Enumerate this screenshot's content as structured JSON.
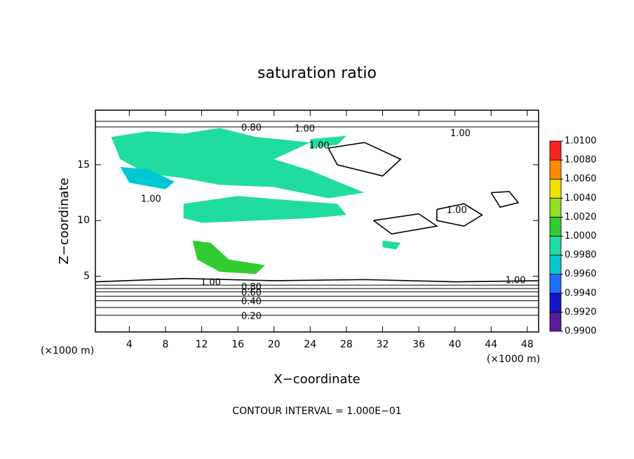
{
  "chart_data": {
    "type": "contour",
    "title": "saturation ratio",
    "x_label": "X−coordinate",
    "y_label": "Z−coordinate",
    "x_unit": "(×1000 m)",
    "y_unit": "(×1000 m)",
    "footnote": "CONTOUR INTERVAL = 1.000E−01",
    "xlim": [
      0.25,
      49.25
    ],
    "ylim": [
      0,
      19.9
    ],
    "xticks": [
      4,
      8,
      12,
      16,
      20,
      24,
      28,
      32,
      36,
      40,
      44,
      48
    ],
    "yticks": [
      5,
      10,
      15
    ],
    "colorbar": {
      "levels": [
        {
          "value": 0.99,
          "label": "0.9900"
        },
        {
          "value": 0.992,
          "label": "0.9920"
        },
        {
          "value": 0.994,
          "label": "0.9940"
        },
        {
          "value": 0.996,
          "label": "0.9960"
        },
        {
          "value": 0.998,
          "label": "0.9980"
        },
        {
          "value": 1.0,
          "label": "1.0000"
        },
        {
          "value": 1.002,
          "label": "1.0020"
        },
        {
          "value": 1.004,
          "label": "1.0040"
        },
        {
          "value": 1.006,
          "label": "1.0060"
        },
        {
          "value": 1.008,
          "label": "1.0080"
        },
        {
          "value": 1.01,
          "label": "1.0100"
        }
      ],
      "colors": [
        "#5a1a9a",
        "#1414c8",
        "#1e6eff",
        "#00c8d2",
        "#20dca0",
        "#30cc30",
        "#90e020",
        "#f0e000",
        "#ff8c00",
        "#ff2020"
      ]
    },
    "filled_regions": [
      {
        "value": 0.9999,
        "x": [
          2,
          6,
          10,
          14,
          18,
          24,
          20,
          24,
          30,
          26,
          20,
          14,
          10,
          6,
          3
        ],
        "y": [
          17.5,
          18,
          17.8,
          18.3,
          17.5,
          17,
          15.5,
          14.5,
          12.5,
          12,
          13,
          13.2,
          13.8,
          14.2,
          15.5
        ]
      },
      {
        "value": 0.9999,
        "x": [
          10,
          16,
          22,
          27,
          28,
          24,
          18,
          12,
          10
        ],
        "y": [
          11.5,
          12.2,
          11.8,
          11.5,
          10.5,
          10.2,
          10,
          9.8,
          10.2
        ]
      },
      {
        "value": 1.0003,
        "x": [
          11,
          13,
          15,
          19,
          18,
          14,
          11.5
        ],
        "y": [
          8.2,
          8,
          6.5,
          6,
          5.2,
          5.4,
          6.5
        ]
      },
      {
        "value": 0.9975,
        "x": [
          3,
          6,
          9,
          8,
          4
        ],
        "y": [
          14.8,
          14.6,
          13.5,
          12.8,
          13.4
        ]
      },
      {
        "value": 0.9995,
        "x": [
          24,
          28,
          27,
          24
        ],
        "y": [
          17.3,
          17.6,
          16.8,
          16.5
        ]
      },
      {
        "value": 0.9985,
        "x": [
          32,
          34,
          33.5,
          32
        ],
        "y": [
          8.2,
          8,
          7.4,
          7.6
        ]
      }
    ],
    "contours": [
      {
        "level": 0.2,
        "x": [
          0.25,
          49.25
        ],
        "y": [
          1.5,
          1.5
        ]
      },
      {
        "level": 0.3,
        "x": [
          0.25,
          49.25
        ],
        "y": [
          2.2,
          2.2
        ]
      },
      {
        "level": 0.4,
        "x": [
          0.25,
          49.25
        ],
        "y": [
          2.8,
          2.8
        ]
      },
      {
        "level": 0.5,
        "x": [
          0.25,
          49.25
        ],
        "y": [
          3.2,
          3.2
        ]
      },
      {
        "level": 0.6,
        "x": [
          0.25,
          49.25
        ],
        "y": [
          3.6,
          3.6
        ]
      },
      {
        "level": 0.7,
        "x": [
          0.25,
          49.25
        ],
        "y": [
          3.9,
          3.9
        ]
      },
      {
        "level": 0.8,
        "x": [
          0.25,
          49.25
        ],
        "y": [
          4.2,
          4.2
        ]
      },
      {
        "level": 0.8,
        "x": [
          0.25,
          49.25
        ],
        "y": [
          18.4,
          18.4
        ]
      },
      {
        "level": 0.7,
        "x": [
          0.25,
          49.25
        ],
        "y": [
          18.9,
          18.9
        ]
      },
      {
        "level": 1.0,
        "x": [
          0.25,
          10,
          20,
          30,
          40,
          49.25
        ],
        "y": [
          4.5,
          4.8,
          4.6,
          4.7,
          4.5,
          4.6
        ]
      },
      {
        "level": 1.0,
        "x": [
          38,
          41,
          43,
          41,
          38,
          38
        ],
        "y": [
          11,
          11.5,
          10.5,
          9.5,
          10,
          11
        ]
      },
      {
        "level": 1.0,
        "x": [
          44,
          46,
          47,
          45,
          44
        ],
        "y": [
          12.5,
          12.6,
          11.6,
          11.2,
          12.5
        ]
      },
      {
        "level": 1.0,
        "x": [
          26,
          30,
          34,
          32,
          27,
          26
        ],
        "y": [
          16.5,
          17,
          15.5,
          14,
          15,
          16.5
        ]
      },
      {
        "level": 1.0,
        "x": [
          31,
          36,
          38,
          33,
          31
        ],
        "y": [
          10,
          10.6,
          9.5,
          8.8,
          10
        ]
      }
    ],
    "contour_labels": [
      {
        "text": "0.20",
        "x": 17.5,
        "y": 1.4
      },
      {
        "text": "0.40",
        "x": 17.5,
        "y": 2.7
      },
      {
        "text": "0.60",
        "x": 17.5,
        "y": 3.5
      },
      {
        "text": "0.80",
        "x": 17.5,
        "y": 4.0
      },
      {
        "text": "1.00",
        "x": 13,
        "y": 4.4
      },
      {
        "text": "0.80",
        "x": 17.5,
        "y": 18.3
      },
      {
        "text": "1.00",
        "x": 23.4,
        "y": 18.2
      },
      {
        "text": "1.00",
        "x": 25,
        "y": 16.7
      },
      {
        "text": "1.00",
        "x": 40.6,
        "y": 17.8
      },
      {
        "text": "1.00",
        "x": 6.4,
        "y": 11.9
      },
      {
        "text": "1.00",
        "x": 40.2,
        "y": 10.9
      },
      {
        "text": "1.00",
        "x": 46.7,
        "y": 4.6
      }
    ]
  }
}
